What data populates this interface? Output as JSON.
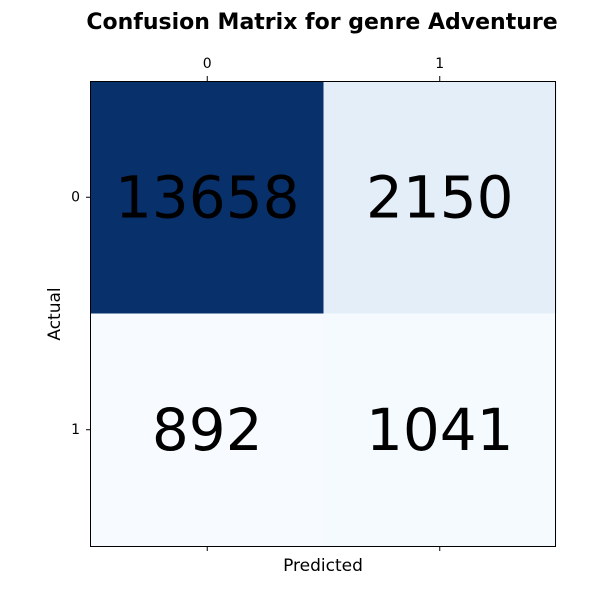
{
  "chart_data": {
    "type": "heatmap",
    "title": "Confusion Matrix for genre Adventure",
    "xlabel": "Predicted",
    "ylabel": "Actual",
    "x_categories": [
      "0",
      "1"
    ],
    "y_categories": [
      "0",
      "1"
    ],
    "values": [
      [
        13658,
        2150
      ],
      [
        892,
        1041
      ]
    ],
    "colormap": "Blues",
    "colors": {
      "low": "#f7fbff",
      "high": "#08306b"
    },
    "x_ticks_position": "top",
    "grid": false,
    "legend": false
  }
}
